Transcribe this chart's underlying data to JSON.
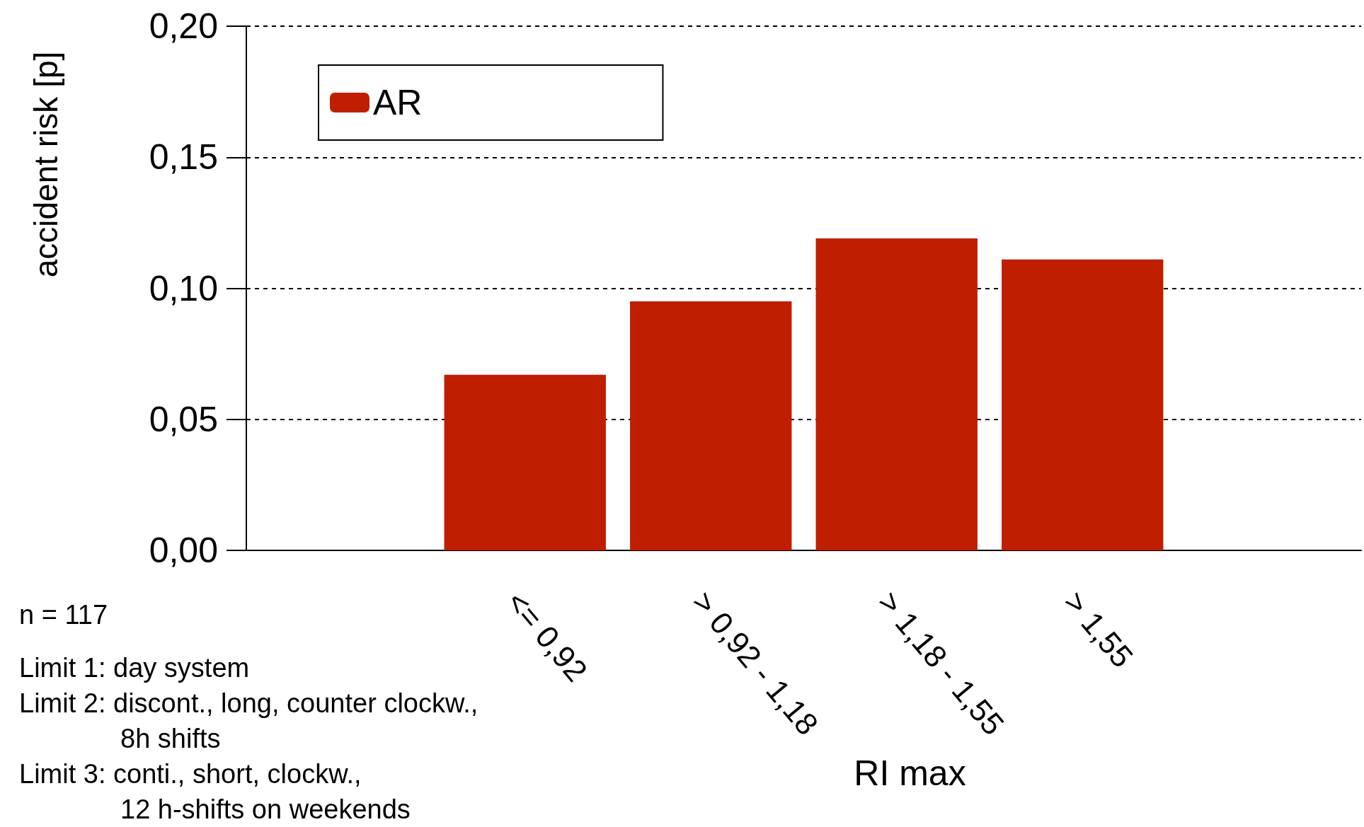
{
  "chart_data": {
    "type": "bar",
    "categories": [
      null,
      "<= 0,92",
      "> 0,92 - 1,18",
      "> 1,18 - 1,55",
      "> 1,55",
      null
    ],
    "series": [
      {
        "name": "AR",
        "color": "#bf1e00",
        "values": [
          null,
          0.067,
          0.095,
          0.119,
          0.111,
          null
        ]
      }
    ],
    "xlabel": "RI max",
    "ylabel": "accident risk [p]",
    "ylim": [
      0,
      0.2
    ],
    "yticks": [
      {
        "value": 0,
        "label": "0,00"
      },
      {
        "value": 0.05,
        "label": "0,05"
      },
      {
        "value": 0.1,
        "label": "0,10"
      },
      {
        "value": 0.15,
        "label": "0,15"
      },
      {
        "value": 0.2,
        "label": "0,20"
      }
    ],
    "grid": "y",
    "legend": "top left",
    "annotations": [
      "n = 117",
      "Limit 1: day system",
      "Limit 2: discont., long, counter clockw.,\n8h shifts",
      "Limit 3: conti., short, clockw.,\n12 h-shifts on weekends"
    ]
  }
}
